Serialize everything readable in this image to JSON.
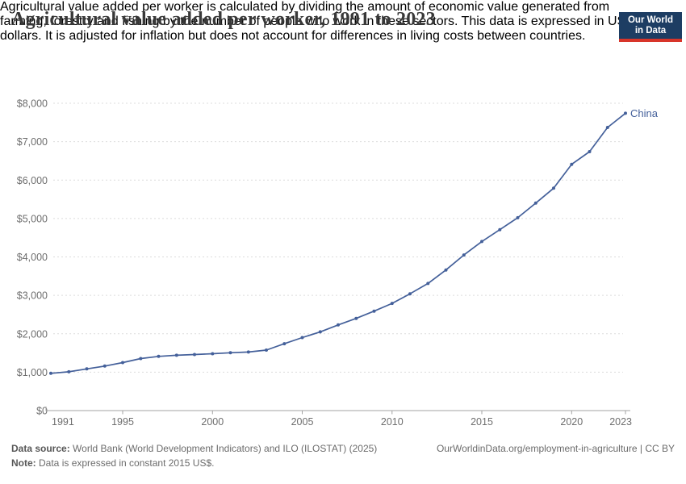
{
  "header": {
    "title": "Agricultural value added per worker, 1991 to 2023",
    "subtitle_lines": [
      "Agricultural value added per worker is calculated by dividing the amount of economic value generated from",
      "farming, forestry and fishing by the number of people who work in these sectors. This data is expressed in US",
      "dollars. It is adjusted for inflation but does not account for differences in living costs between countries."
    ],
    "logo": {
      "line1": "Our World",
      "line2": "in Data",
      "bg_color": "#1d3d63",
      "stripe_color": "#d8352a"
    }
  },
  "chart_data": {
    "type": "line",
    "title": "Agricultural value added per worker, 1991 to 2023",
    "xlabel": "",
    "ylabel": "",
    "x": [
      1991,
      1992,
      1993,
      1994,
      1995,
      1996,
      1997,
      1998,
      1999,
      2000,
      2001,
      2002,
      2003,
      2004,
      2005,
      2006,
      2007,
      2008,
      2009,
      2010,
      2011,
      2012,
      2013,
      2014,
      2015,
      2016,
      2017,
      2018,
      2019,
      2020,
      2021,
      2022,
      2023
    ],
    "series": [
      {
        "name": "China",
        "color": "#44609a",
        "values": [
          970,
          1010,
          1085,
          1160,
          1250,
          1355,
          1410,
          1440,
          1460,
          1480,
          1505,
          1525,
          1575,
          1740,
          1900,
          2050,
          2230,
          2400,
          2590,
          2790,
          3040,
          3310,
          3660,
          4050,
          4400,
          4710,
          5020,
          5400,
          5790,
          6410,
          6740,
          7370,
          7740
        ]
      }
    ],
    "xlim": [
      1991,
      2023
    ],
    "ylim": [
      0,
      8000
    ],
    "xticks": [
      1991,
      1995,
      2000,
      2005,
      2010,
      2015,
      2020,
      2023
    ],
    "yticks": [
      0,
      1000,
      2000,
      3000,
      4000,
      5000,
      6000,
      7000,
      8000
    ],
    "ytick_labels": [
      "$0",
      "$1,000",
      "$2,000",
      "$3,000",
      "$4,000",
      "$5,000",
      "$6,000",
      "$7,000",
      "$8,000"
    ],
    "grid": "horizontal dashed",
    "legend": "end-of-line label",
    "end_label": "China",
    "units": "constant 2015 US$"
  },
  "footer": {
    "datasource_label": "Data source:",
    "datasource_text": " World Bank (World Development Indicators) and ILO (ILOSTAT) (2025)",
    "url": "OurWorldinData.org/employment-in-agriculture",
    "separator": " | ",
    "license": "CC BY",
    "note_label": "Note:",
    "note_text": " Data is expressed in constant 2015 US$."
  },
  "colors": {
    "line": "#44609a",
    "gridline": "#dcdcdc",
    "axis": "#a3a3a3",
    "tick_text": "#6e6e6e",
    "title_text": "#383838"
  }
}
